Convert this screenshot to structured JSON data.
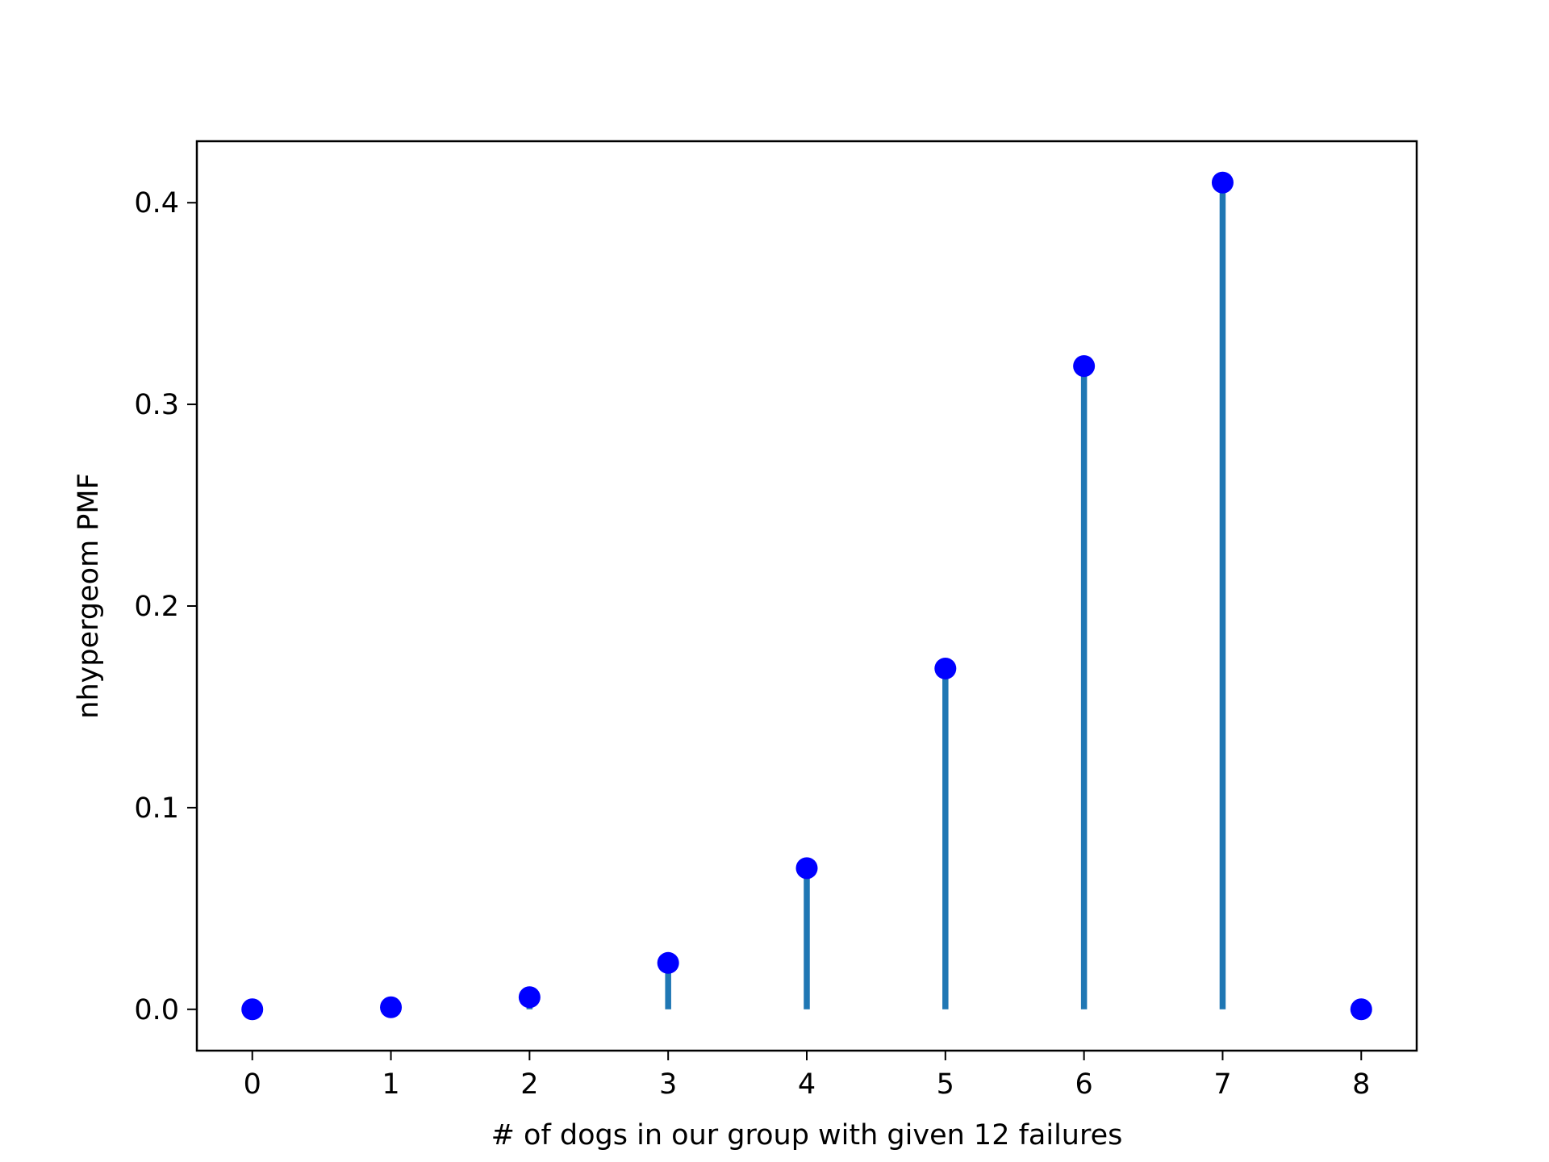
{
  "chart_data": {
    "type": "stem",
    "title": "",
    "xlabel": "# of dogs in our group with given 12 failures",
    "ylabel": "nhypergeom PMF",
    "x": [
      0,
      1,
      2,
      3,
      4,
      5,
      6,
      7,
      8
    ],
    "values": [
      0.0,
      0.001,
      0.006,
      0.023,
      0.07,
      0.169,
      0.319,
      0.41,
      0.0
    ],
    "xlim": [
      -0.4,
      8.4
    ],
    "ylim": [
      -0.0205,
      0.4305
    ],
    "xticks": [
      0,
      1,
      2,
      3,
      4,
      5,
      6,
      7,
      8
    ],
    "xtick_labels": [
      "0",
      "1",
      "2",
      "3",
      "4",
      "5",
      "6",
      "7",
      "8"
    ],
    "yticks": [
      0.0,
      0.1,
      0.2,
      0.3,
      0.4
    ],
    "ytick_labels": [
      "0.0",
      "0.1",
      "0.2",
      "0.3",
      "0.4"
    ],
    "grid": false,
    "legend": "none",
    "colors": {
      "stem": "#1f77b4",
      "marker": "#0000ff",
      "axes": "#000000"
    }
  }
}
